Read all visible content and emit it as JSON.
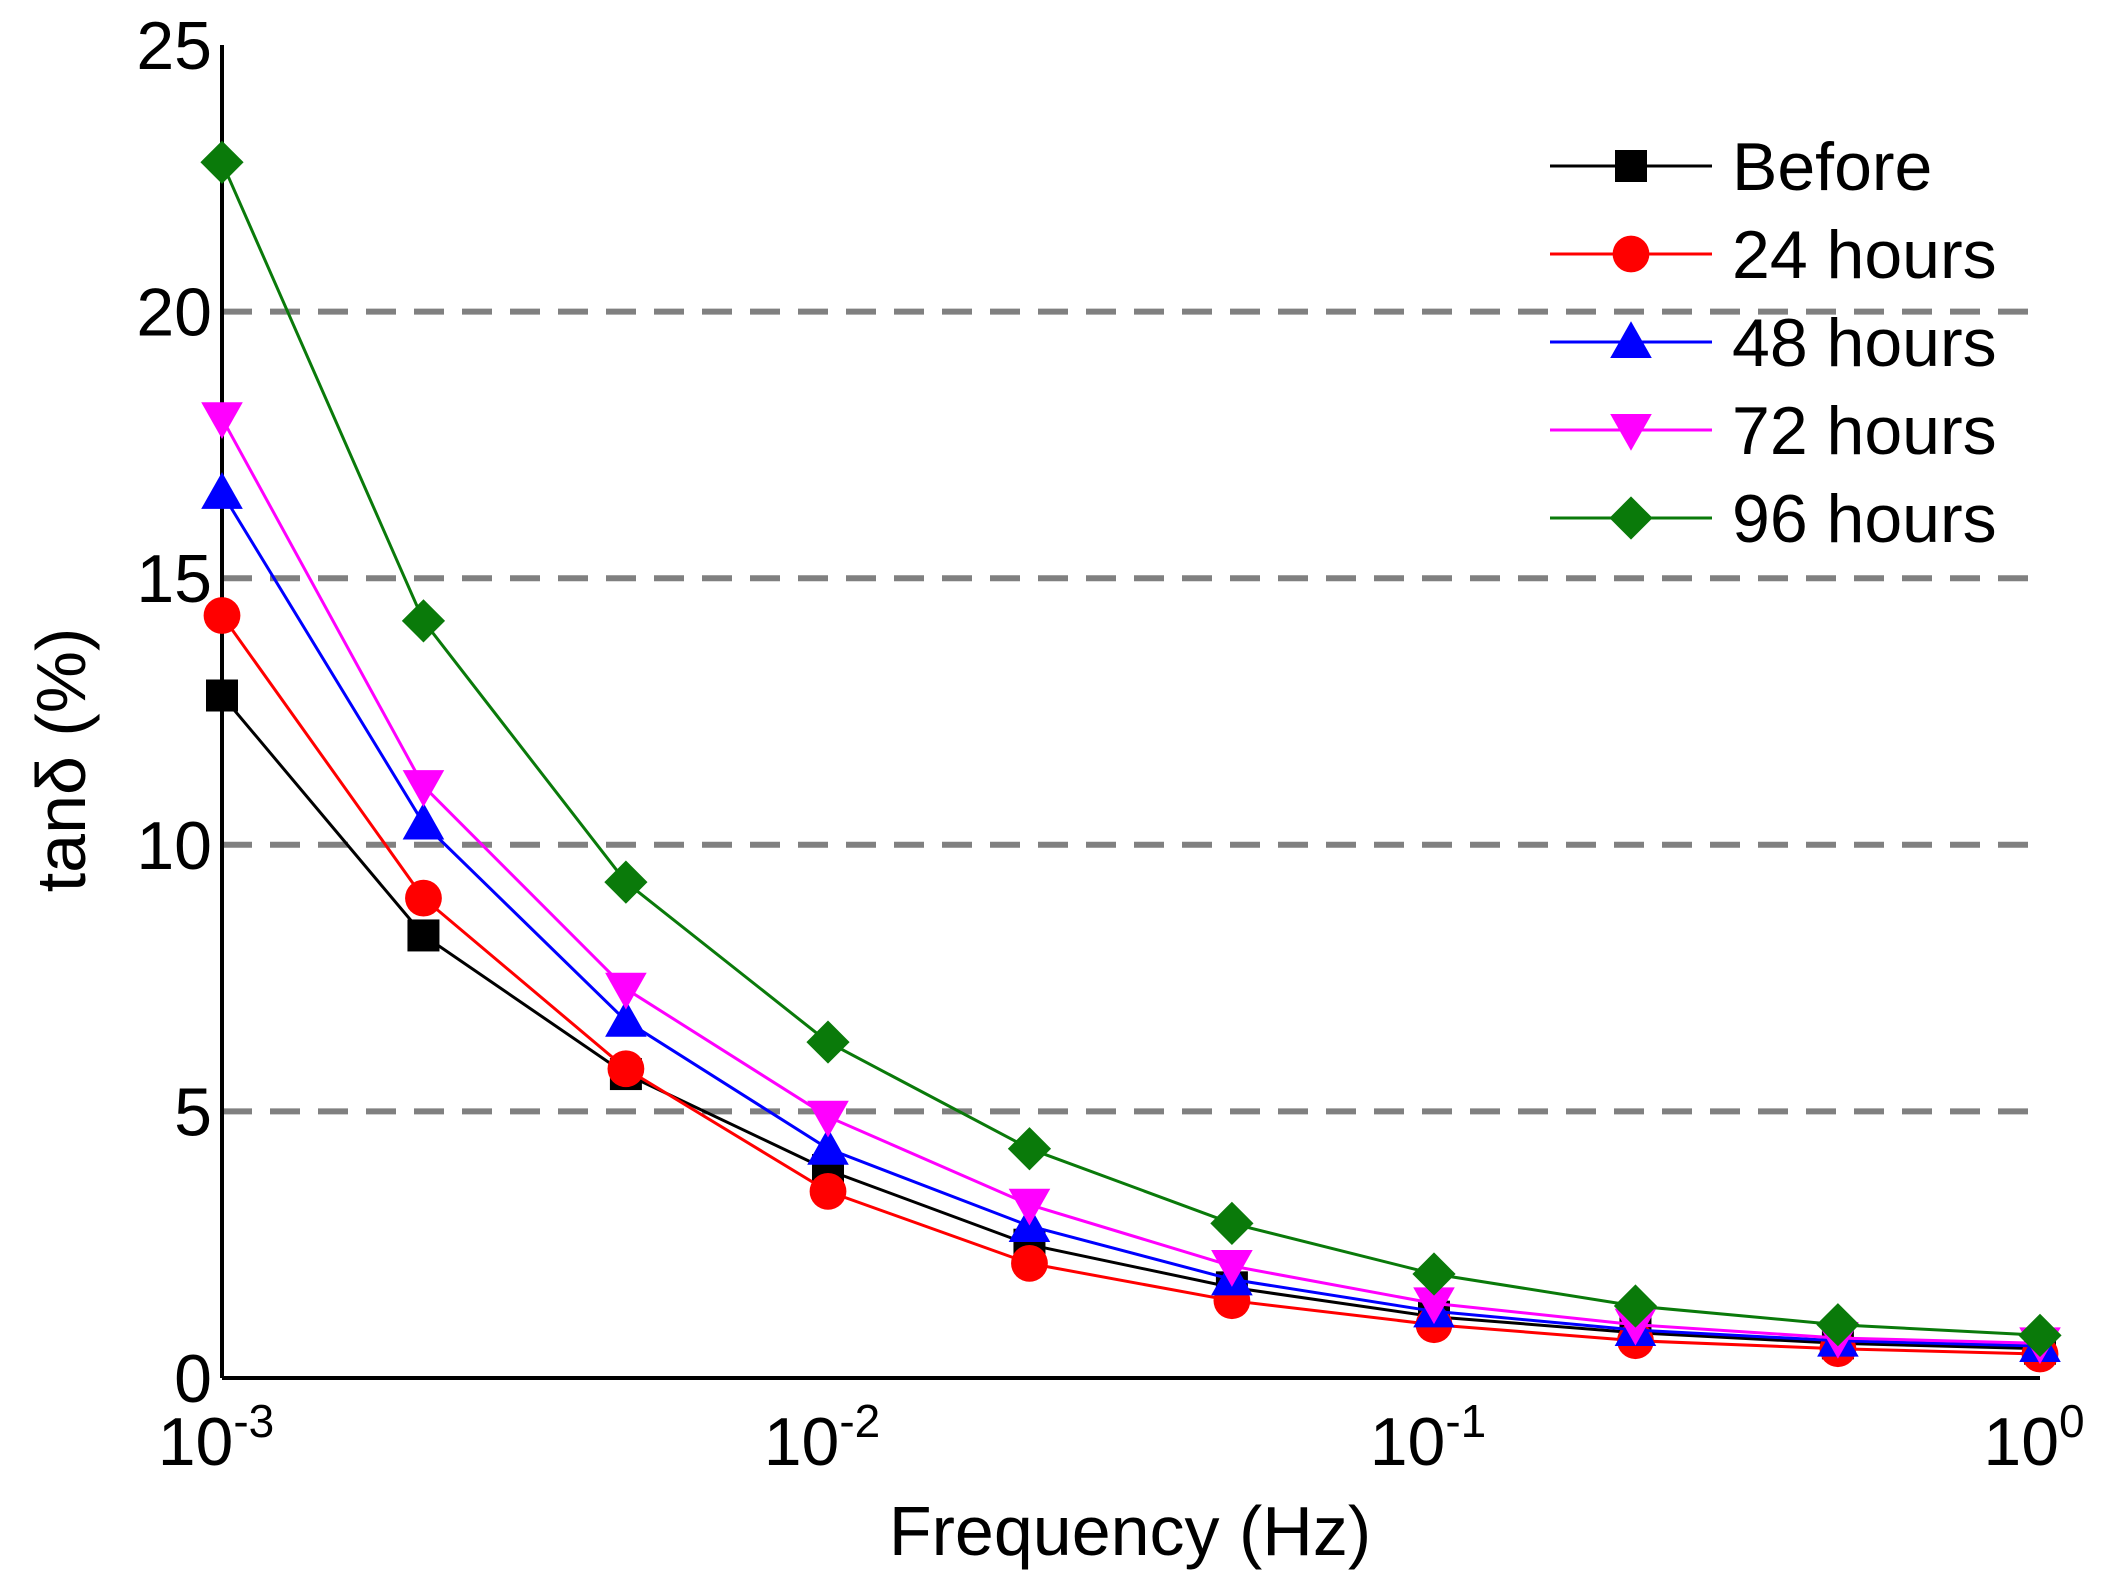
{
  "chart_data": {
    "type": "line",
    "title": "",
    "xlabel": "Frequency (Hz)",
    "ylabel": "tanδ (%)",
    "xscale": "log",
    "xlim": [
      0.001,
      1
    ],
    "ylim": [
      0,
      25
    ],
    "grid": "horizontal dashed at 5, 10, 15, 20",
    "gridlines": [
      5,
      10,
      15,
      20
    ],
    "y_ticks": [
      0,
      5,
      10,
      15,
      20,
      25
    ],
    "x_ticks": [
      {
        "value": 0.001,
        "base": "10",
        "exp": "-3"
      },
      {
        "value": 0.01,
        "base": "10",
        "exp": "-2"
      },
      {
        "value": 0.1,
        "base": "10",
        "exp": "-1"
      },
      {
        "value": 1,
        "base": "10",
        "exp": "0"
      }
    ],
    "legend_position": "top-right",
    "x": [
      0.001,
      0.00215,
      0.00464,
      0.01,
      0.0215,
      0.0464,
      0.1,
      0.215,
      0.464,
      1
    ],
    "series": [
      {
        "name": "Before",
        "color": "#000000",
        "marker": "square",
        "values": [
          12.8,
          8.3,
          5.7,
          3.9,
          2.5,
          1.7,
          1.15,
          0.85,
          0.65,
          0.55
        ]
      },
      {
        "name": "24 hours",
        "color": "#ff0000",
        "marker": "circle",
        "values": [
          14.3,
          9.0,
          5.8,
          3.5,
          2.15,
          1.45,
          1.0,
          0.7,
          0.55,
          0.45
        ]
      },
      {
        "name": "48 hours",
        "color": "#0000ff",
        "marker": "triangle-up",
        "values": [
          16.6,
          10.4,
          6.7,
          4.3,
          2.85,
          1.85,
          1.25,
          0.9,
          0.7,
          0.6
        ]
      },
      {
        "name": "72 hours",
        "color": "#ff00ff",
        "marker": "triangle-down",
        "values": [
          18.0,
          11.1,
          7.3,
          4.9,
          3.25,
          2.1,
          1.4,
          1.0,
          0.75,
          0.65
        ]
      },
      {
        "name": "96 hours",
        "color": "#0a7a0a",
        "marker": "diamond",
        "values": [
          22.8,
          14.2,
          9.3,
          6.3,
          4.3,
          2.9,
          1.95,
          1.35,
          1.0,
          0.8
        ]
      }
    ]
  }
}
